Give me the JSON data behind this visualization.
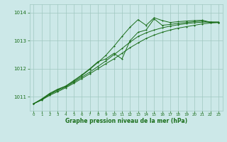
{
  "background_color": "#cce8e8",
  "grid_color": "#a0c8c0",
  "line_color": "#1a6e1a",
  "xlabel": "Graphe pression niveau de la mer (hPa)",
  "ylim": [
    1010.5,
    1014.3
  ],
  "xlim": [
    -0.5,
    23.5
  ],
  "yticks": [
    1011,
    1012,
    1013,
    1014
  ],
  "xticks": [
    0,
    1,
    2,
    3,
    4,
    5,
    6,
    7,
    8,
    9,
    10,
    11,
    12,
    13,
    14,
    15,
    16,
    17,
    18,
    19,
    20,
    21,
    22,
    23
  ],
  "series1": [
    1010.75,
    1010.88,
    1011.05,
    1011.18,
    1011.32,
    1011.48,
    1011.65,
    1011.82,
    1012.0,
    1012.18,
    1012.35,
    1012.55,
    1012.75,
    1012.92,
    1013.08,
    1013.2,
    1013.3,
    1013.38,
    1013.45,
    1013.5,
    1013.55,
    1013.6,
    1013.63,
    1013.65
  ],
  "series2": [
    1010.75,
    1010.9,
    1011.08,
    1011.22,
    1011.35,
    1011.52,
    1011.7,
    1011.88,
    1012.08,
    1012.28,
    1012.5,
    1012.72,
    1012.95,
    1013.15,
    1013.28,
    1013.38,
    1013.46,
    1013.52,
    1013.57,
    1013.61,
    1013.64,
    1013.66,
    1013.67,
    1013.67
  ],
  "series3": [
    1010.75,
    1010.9,
    1011.1,
    1011.25,
    1011.38,
    1011.55,
    1011.75,
    1011.98,
    1012.22,
    1012.48,
    1012.8,
    1013.15,
    1013.48,
    1013.75,
    1013.55,
    1013.82,
    1013.72,
    1013.65,
    1013.68,
    1013.7,
    1013.72,
    1013.73,
    1013.66,
    1013.65
  ],
  "series4": [
    1010.75,
    1010.92,
    1011.12,
    1011.27,
    1011.38,
    1011.58,
    1011.78,
    1012.0,
    1012.25,
    1012.35,
    1012.55,
    1012.35,
    1013.0,
    1013.3,
    1013.38,
    1013.78,
    1013.55,
    1013.58,
    1013.62,
    1013.65,
    1013.68,
    1013.7,
    1013.65,
    1013.65
  ]
}
